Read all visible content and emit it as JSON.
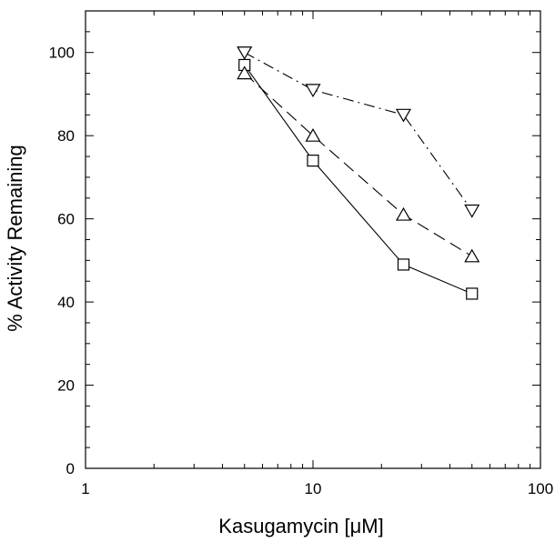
{
  "chart_data": {
    "type": "line",
    "xlabel": "Kasugamycin [μM]",
    "ylabel": "% Activity Remaining",
    "xscale": "log",
    "xlim": [
      1,
      100
    ],
    "ylim": [
      0,
      110
    ],
    "xticks": [
      1,
      10,
      100
    ],
    "xtick_labels": [
      "1",
      "10",
      "100"
    ],
    "yticks": [
      0,
      20,
      40,
      60,
      80,
      100
    ],
    "ytick_labels": [
      "0",
      "20",
      "40",
      "60",
      "80",
      "100"
    ],
    "grid": false,
    "legend": "none",
    "series": [
      {
        "marker": "square",
        "dash": "solid",
        "x": [
          5,
          10,
          25,
          50
        ],
        "y": [
          97,
          74,
          49,
          42
        ]
      },
      {
        "marker": "triangle-up",
        "dash": "dashed",
        "x": [
          5,
          10,
          25,
          50
        ],
        "y": [
          95,
          80,
          61,
          51
        ]
      },
      {
        "marker": "triangle-down",
        "dash": "dash-dot",
        "x": [
          5,
          10,
          25,
          50
        ],
        "y": [
          100,
          91,
          85,
          62
        ]
      }
    ]
  }
}
